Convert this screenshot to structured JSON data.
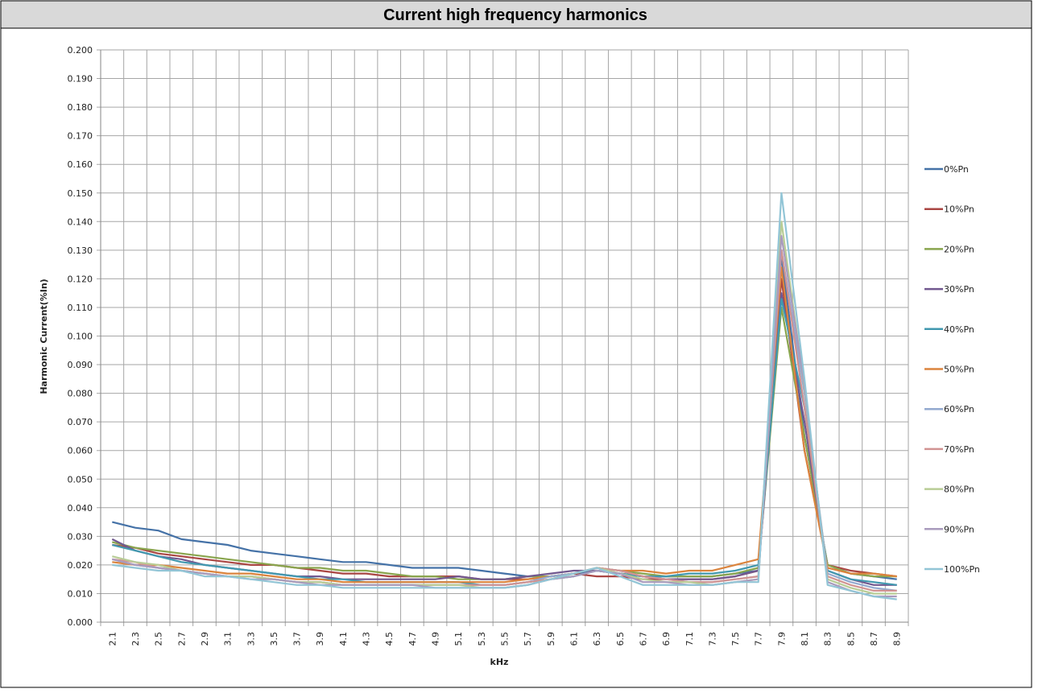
{
  "chart_data": {
    "type": "line",
    "title": "Current high frequency harmonics",
    "x_label": "kHz",
    "y_label": "Harmonic Current(%In)",
    "grid": true,
    "legend": "right",
    "categories": [
      "2.1",
      "2.3",
      "2.5",
      "2.7",
      "2.9",
      "3.1",
      "3.3",
      "3.5",
      "3.7",
      "3.9",
      "4.1",
      "4.3",
      "4.5",
      "4.7",
      "4.9",
      "5.1",
      "5.3",
      "5.5",
      "5.7",
      "5.9",
      "6.1",
      "6.3",
      "6.5",
      "6.7",
      "6.9",
      "7.1",
      "7.3",
      "7.5",
      "7.7",
      "7.9",
      "8.1",
      "8.3",
      "8.5",
      "8.7",
      "8.9"
    ],
    "ylim": [
      0,
      0.2
    ],
    "yticks": [
      {
        "value": 0,
        "label": "0.000"
      },
      {
        "value": 0.01,
        "label": "0.010"
      },
      {
        "value": 0.02,
        "label": "0.020"
      },
      {
        "value": 0.03,
        "label": "0.030"
      },
      {
        "value": 0.04,
        "label": "0.040"
      },
      {
        "value": 0.05,
        "label": "0.050"
      },
      {
        "value": 0.06,
        "label": "0.060"
      },
      {
        "value": 0.07,
        "label": "0.070"
      },
      {
        "value": 0.08,
        "label": "0.080"
      },
      {
        "value": 0.09,
        "label": "0.090"
      },
      {
        "value": 0.1,
        "label": "0.100"
      },
      {
        "value": 0.11,
        "label": "0.110"
      },
      {
        "value": 0.12,
        "label": "0.120"
      },
      {
        "value": 0.13,
        "label": "0.130"
      },
      {
        "value": 0.14,
        "label": "0.140"
      },
      {
        "value": 0.15,
        "label": "0.150"
      },
      {
        "value": 0.16,
        "label": "0.160"
      },
      {
        "value": 0.17,
        "label": "0.170"
      },
      {
        "value": 0.18,
        "label": "0.180"
      },
      {
        "value": 0.19,
        "label": "0.190"
      },
      {
        "value": 0.2,
        "label": "0.200"
      }
    ],
    "series": [
      {
        "name": "0%Pn",
        "color": "#4572a7",
        "values": [
          0.035,
          0.033,
          0.032,
          0.029,
          0.028,
          0.027,
          0.025,
          0.024,
          0.023,
          0.022,
          0.021,
          0.021,
          0.02,
          0.019,
          0.019,
          0.019,
          0.018,
          0.017,
          0.016,
          0.016,
          0.017,
          0.018,
          0.017,
          0.016,
          0.016,
          0.016,
          0.016,
          0.017,
          0.018,
          0.128,
          0.065,
          0.02,
          0.017,
          0.016,
          0.015
        ]
      },
      {
        "name": "10%Pn",
        "color": "#aa4643",
        "values": [
          0.027,
          0.026,
          0.024,
          0.023,
          0.022,
          0.021,
          0.02,
          0.02,
          0.019,
          0.018,
          0.017,
          0.017,
          0.016,
          0.016,
          0.016,
          0.016,
          0.015,
          0.015,
          0.015,
          0.016,
          0.017,
          0.016,
          0.016,
          0.015,
          0.015,
          0.015,
          0.015,
          0.016,
          0.018,
          0.12,
          0.06,
          0.02,
          0.018,
          0.017,
          0.016
        ]
      },
      {
        "name": "20%Pn",
        "color": "#89a54e",
        "values": [
          0.028,
          0.026,
          0.025,
          0.024,
          0.023,
          0.022,
          0.021,
          0.02,
          0.019,
          0.019,
          0.018,
          0.018,
          0.017,
          0.016,
          0.016,
          0.015,
          0.015,
          0.015,
          0.016,
          0.016,
          0.017,
          0.019,
          0.018,
          0.017,
          0.016,
          0.016,
          0.016,
          0.017,
          0.019,
          0.11,
          0.065,
          0.02,
          0.017,
          0.016,
          0.016
        ]
      },
      {
        "name": "30%Pn",
        "color": "#71588f",
        "values": [
          0.029,
          0.025,
          0.023,
          0.022,
          0.02,
          0.019,
          0.018,
          0.017,
          0.016,
          0.016,
          0.015,
          0.015,
          0.015,
          0.015,
          0.015,
          0.016,
          0.015,
          0.015,
          0.016,
          0.017,
          0.018,
          0.018,
          0.017,
          0.016,
          0.015,
          0.015,
          0.015,
          0.016,
          0.018,
          0.115,
          0.07,
          0.018,
          0.015,
          0.013,
          0.013
        ]
      },
      {
        "name": "40%Pn",
        "color": "#4198af",
        "values": [
          0.027,
          0.025,
          0.023,
          0.021,
          0.02,
          0.019,
          0.018,
          0.017,
          0.016,
          0.015,
          0.015,
          0.014,
          0.014,
          0.014,
          0.014,
          0.014,
          0.013,
          0.013,
          0.014,
          0.015,
          0.016,
          0.018,
          0.017,
          0.016,
          0.016,
          0.017,
          0.017,
          0.018,
          0.02,
          0.113,
          0.075,
          0.018,
          0.015,
          0.014,
          0.013
        ]
      },
      {
        "name": "50%Pn",
        "color": "#db843d",
        "values": [
          0.021,
          0.02,
          0.02,
          0.019,
          0.018,
          0.017,
          0.017,
          0.016,
          0.015,
          0.015,
          0.014,
          0.014,
          0.014,
          0.014,
          0.014,
          0.014,
          0.014,
          0.014,
          0.015,
          0.016,
          0.017,
          0.019,
          0.018,
          0.018,
          0.017,
          0.018,
          0.018,
          0.02,
          0.022,
          0.124,
          0.06,
          0.019,
          0.017,
          0.017,
          0.016
        ]
      },
      {
        "name": "60%Pn",
        "color": "#93a9cf",
        "values": [
          0.022,
          0.02,
          0.019,
          0.018,
          0.017,
          0.016,
          0.016,
          0.015,
          0.014,
          0.014,
          0.013,
          0.013,
          0.013,
          0.013,
          0.013,
          0.013,
          0.013,
          0.013,
          0.014,
          0.016,
          0.017,
          0.019,
          0.018,
          0.016,
          0.015,
          0.014,
          0.014,
          0.015,
          0.016,
          0.13,
          0.08,
          0.017,
          0.014,
          0.012,
          0.011
        ]
      },
      {
        "name": "70%Pn",
        "color": "#d19392",
        "values": [
          0.022,
          0.021,
          0.019,
          0.018,
          0.017,
          0.016,
          0.016,
          0.015,
          0.014,
          0.014,
          0.013,
          0.013,
          0.013,
          0.013,
          0.013,
          0.013,
          0.013,
          0.013,
          0.014,
          0.015,
          0.017,
          0.019,
          0.018,
          0.016,
          0.015,
          0.014,
          0.014,
          0.015,
          0.016,
          0.13,
          0.075,
          0.016,
          0.013,
          0.011,
          0.011
        ]
      },
      {
        "name": "80%Pn",
        "color": "#b9cd96",
        "values": [
          0.023,
          0.021,
          0.02,
          0.018,
          0.017,
          0.016,
          0.016,
          0.015,
          0.014,
          0.014,
          0.013,
          0.013,
          0.013,
          0.013,
          0.013,
          0.013,
          0.012,
          0.012,
          0.013,
          0.015,
          0.017,
          0.019,
          0.017,
          0.015,
          0.014,
          0.014,
          0.013,
          0.014,
          0.015,
          0.14,
          0.082,
          0.015,
          0.012,
          0.01,
          0.01
        ]
      },
      {
        "name": "90%Pn",
        "color": "#a99bbd",
        "values": [
          0.022,
          0.02,
          0.019,
          0.018,
          0.017,
          0.016,
          0.015,
          0.015,
          0.014,
          0.013,
          0.013,
          0.013,
          0.013,
          0.013,
          0.012,
          0.012,
          0.012,
          0.012,
          0.013,
          0.015,
          0.016,
          0.018,
          0.017,
          0.014,
          0.014,
          0.013,
          0.013,
          0.014,
          0.015,
          0.135,
          0.083,
          0.014,
          0.011,
          0.009,
          0.009
        ]
      },
      {
        "name": "100%Pn",
        "color": "#92c5d6",
        "values": [
          0.02,
          0.019,
          0.018,
          0.018,
          0.016,
          0.016,
          0.015,
          0.014,
          0.013,
          0.013,
          0.012,
          0.012,
          0.012,
          0.012,
          0.012,
          0.012,
          0.012,
          0.012,
          0.013,
          0.015,
          0.017,
          0.019,
          0.016,
          0.013,
          0.013,
          0.013,
          0.013,
          0.014,
          0.014,
          0.15,
          0.085,
          0.013,
          0.011,
          0.009,
          0.008
        ]
      }
    ]
  }
}
